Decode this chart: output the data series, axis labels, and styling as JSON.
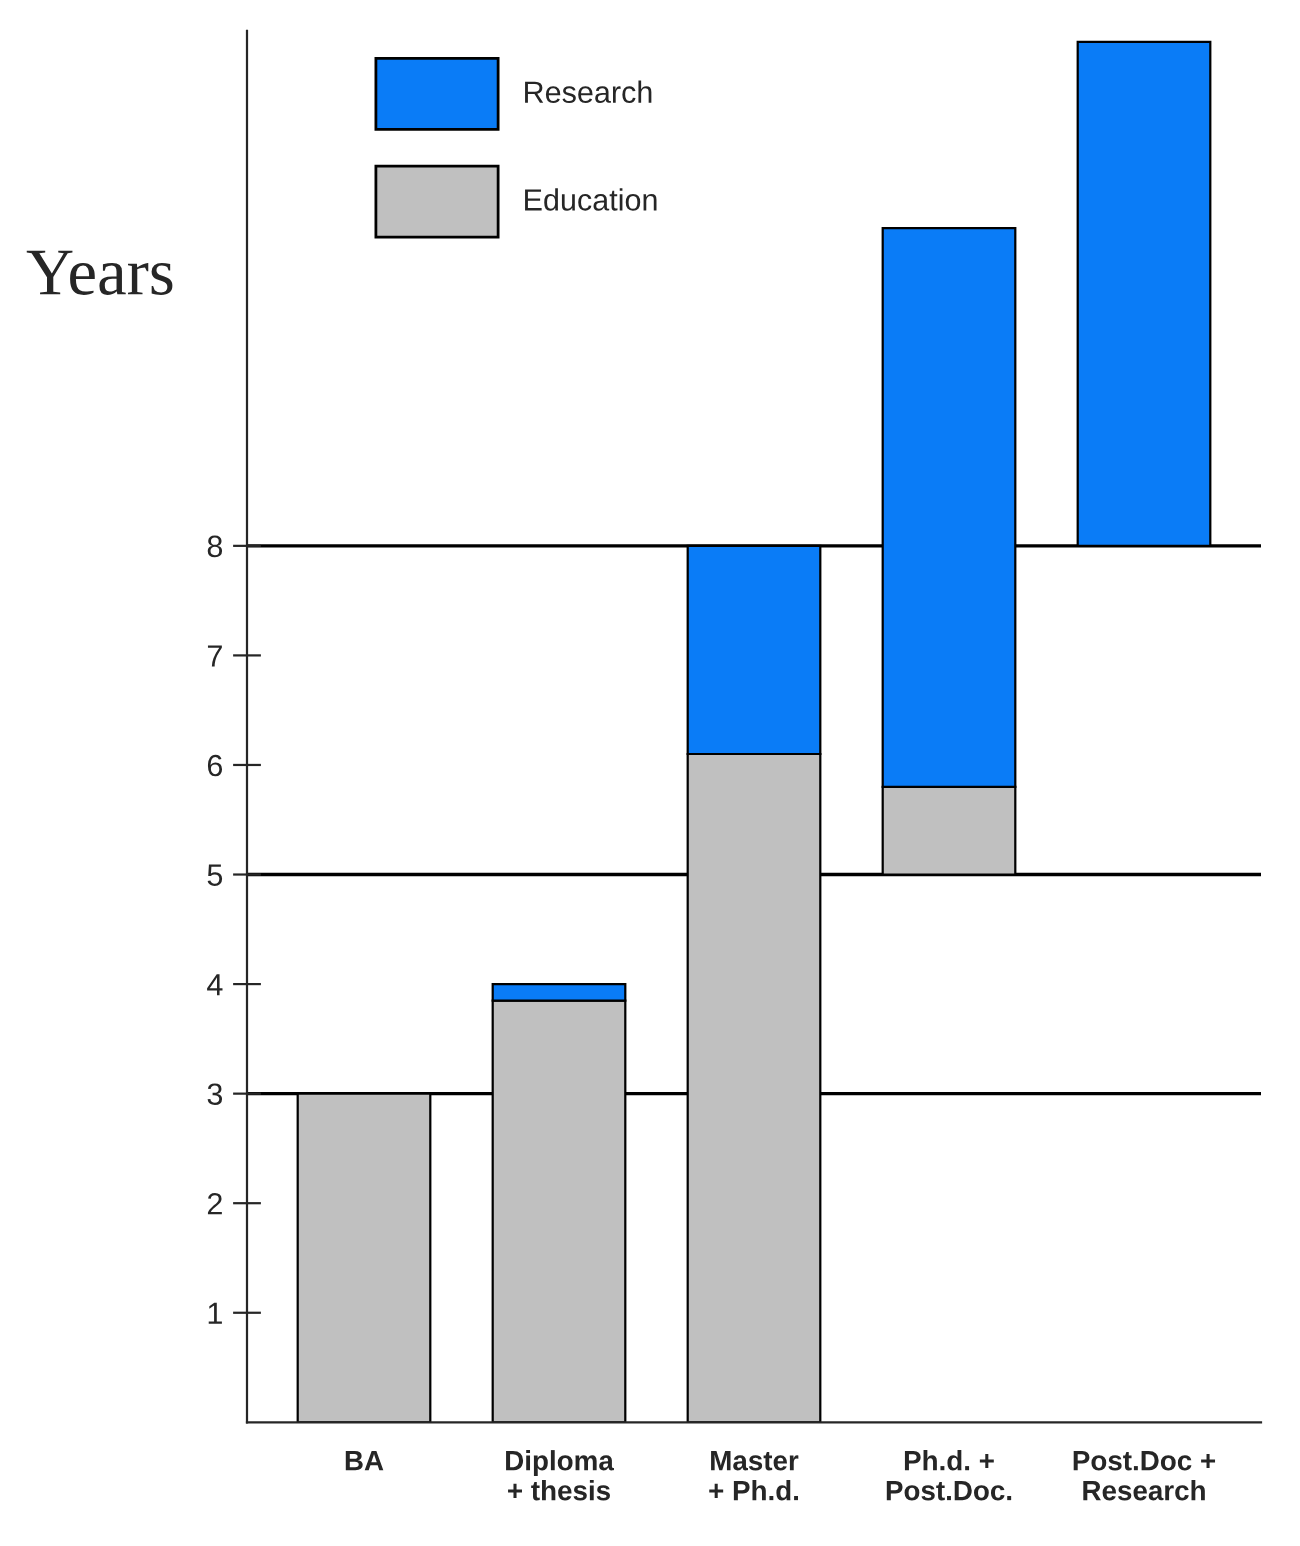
{
  "chart_data": {
    "type": "bar",
    "ylabel": "Years",
    "categories": [
      "BA",
      "Diploma\n+ thesis",
      "Master\n+ Ph.d.",
      "Ph.d. +\nPost.Doc.",
      "Post.Doc +\nResearch"
    ],
    "series": [
      {
        "name": "Education",
        "color": "#c0c0c0",
        "base": [
          0,
          0,
          0,
          5,
          null
        ],
        "values": [
          3,
          3.85,
          6.1,
          0.8,
          null
        ]
      },
      {
        "name": "Research",
        "color": "#0a7cf7",
        "base": [
          null,
          3.85,
          6.1,
          5.8,
          8
        ],
        "values": [
          null,
          0.15,
          1.9,
          5.1,
          4.6
        ]
      }
    ],
    "ylim": [
      0,
      12.7
    ],
    "yticks": [
      1,
      2,
      3,
      4,
      5,
      6,
      7,
      8
    ],
    "ref_lines": [
      {
        "axis": "y",
        "value": 3,
        "color": "#000000"
      },
      {
        "axis": "y",
        "value": 5,
        "color": "#000000"
      },
      {
        "axis": "y",
        "value": 8,
        "color": "#000000"
      }
    ],
    "grid": false,
    "legend": "top left"
  }
}
